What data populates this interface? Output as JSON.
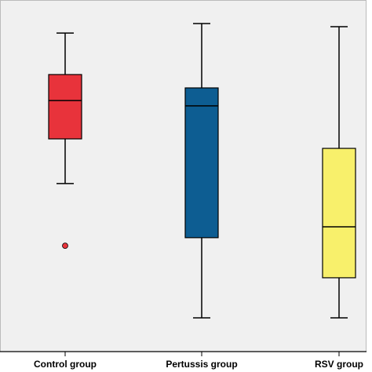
{
  "chart_data": {
    "type": "box",
    "categories": [
      "Control group",
      "Pertussis group",
      "RSV group"
    ],
    "ylim": [
      0,
      100
    ],
    "boxes": [
      {
        "whisker_low": 47.8,
        "q1": 60.5,
        "median": 71.4,
        "q3": 78.8,
        "whisker_high": 90.6,
        "outliers": [
          30.1
        ],
        "color": "#e8333b"
      },
      {
        "whisker_low": 9.6,
        "q1": 32.4,
        "median": 69.9,
        "q3": 75.0,
        "whisker_high": 93.3,
        "outliers": [],
        "color": "#0d5d92"
      },
      {
        "whisker_low": 9.6,
        "q1": 21.0,
        "median": 35.5,
        "q3": 57.8,
        "whisker_high": 92.4,
        "outliers": [],
        "color": "#f8f06b"
      }
    ]
  }
}
